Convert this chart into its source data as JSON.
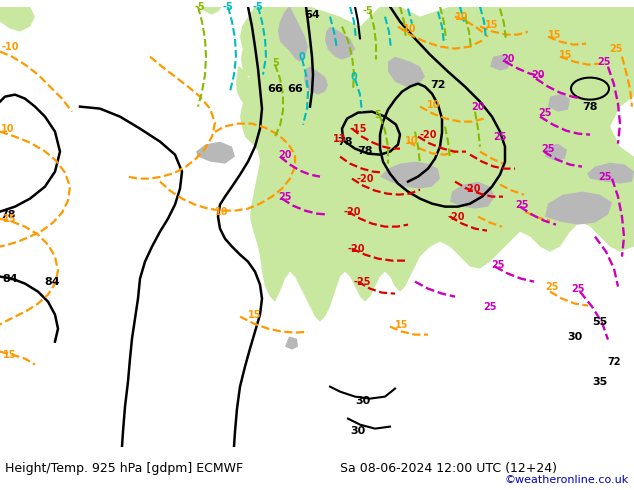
{
  "title_left": "Height/Temp. 925 hPa [gdpm] ECMWF",
  "title_right": "Sa 08-06-2024 12:00 UTC (12+24)",
  "credit": "©weatheronline.co.uk",
  "sea_color": "#e0e0e0",
  "land_green": "#c8e8a0",
  "land_gray": "#b8b8b8",
  "black": "#000000",
  "orange": "#ff9900",
  "red": "#dd0000",
  "magenta": "#cc00bb",
  "cyan": "#00bbbb",
  "green_dash": "#88bb00",
  "credit_color": "#0000cc",
  "title_fs": 9,
  "label_fs": 8,
  "small_fs": 7
}
